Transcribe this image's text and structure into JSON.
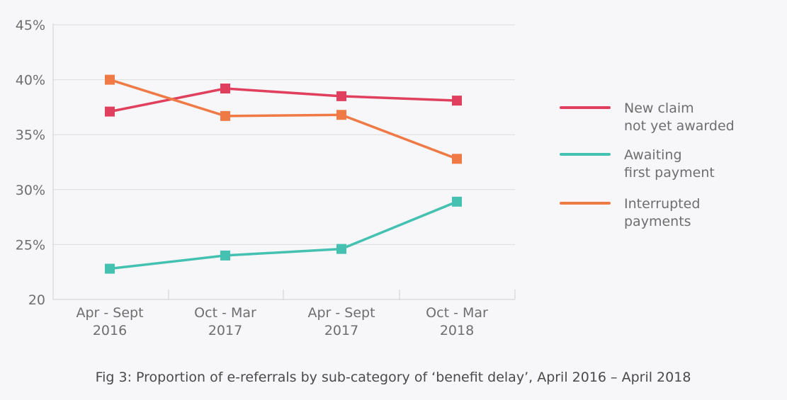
{
  "chart_data": {
    "type": "line",
    "title": "",
    "caption": "Fig 3: Proportion of e-referrals by sub-category of ‘benefit delay’, April 2016 – April 2018",
    "categories": [
      [
        "Apr - Sept",
        "2016"
      ],
      [
        "Oct - Mar",
        "2017"
      ],
      [
        "Apr - Sept",
        "2017"
      ],
      [
        "Oct - Mar",
        "2018"
      ]
    ],
    "y_ticks": [
      {
        "value": 20,
        "label": "20"
      },
      {
        "value": 25,
        "label": "25%"
      },
      {
        "value": 30,
        "label": "30%"
      },
      {
        "value": 35,
        "label": "35%"
      },
      {
        "value": 40,
        "label": "40%"
      },
      {
        "value": 45,
        "label": "45%"
      }
    ],
    "ylim": [
      20,
      45
    ],
    "grid": true,
    "legend_position": "right",
    "series": [
      {
        "name": "New claim not yet awarded",
        "legend_lines": [
          "New claim",
          "not yet awarded"
        ],
        "color": "#e0405e",
        "values": [
          37.1,
          39.2,
          38.5,
          38.1
        ]
      },
      {
        "name": "Awaiting first payment",
        "legend_lines": [
          "Awaiting",
          "first payment"
        ],
        "color": "#45c1b1",
        "values": [
          22.8,
          24.0,
          24.6,
          28.9
        ]
      },
      {
        "name": "Interrupted payments",
        "legend_lines": [
          "Interrupted",
          "payments"
        ],
        "color": "#ef7a45",
        "values": [
          40.0,
          36.7,
          36.8,
          32.8
        ]
      }
    ]
  }
}
